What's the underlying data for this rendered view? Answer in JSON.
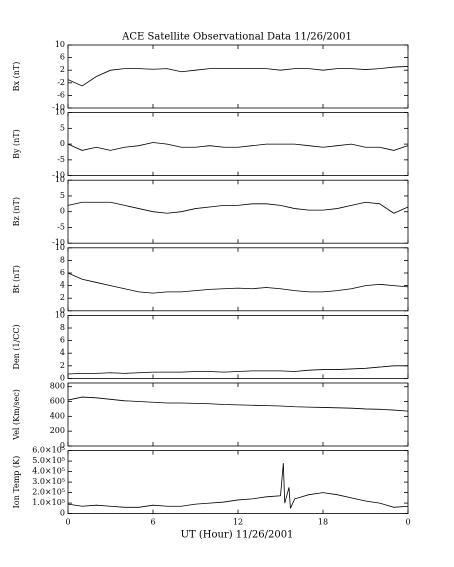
{
  "chart_data": [
    {
      "type": "line",
      "title": "ACE Satellite Observational Data   11/26/2001",
      "ylabel": "Bx (nT)",
      "color": "#000000",
      "ylim": [
        -10,
        10
      ],
      "yticks": [
        -10,
        -6,
        -2,
        2,
        6,
        10
      ],
      "x": [
        0,
        1,
        2,
        3,
        4,
        5,
        6,
        7,
        8,
        9,
        10,
        11,
        12,
        13,
        14,
        15,
        16,
        17,
        18,
        19,
        20,
        21,
        22,
        23,
        24
      ],
      "values": [
        -1,
        -3,
        0,
        2,
        2.5,
        2.5,
        2.3,
        2.5,
        1.5,
        2,
        2.5,
        2.5,
        2.5,
        2.5,
        2.5,
        2,
        2.5,
        2.5,
        2,
        2.5,
        2.5,
        2.2,
        2.5,
        3,
        3.2
      ]
    },
    {
      "type": "line",
      "ylabel": "By (nT)",
      "color": "#000000",
      "ylim": [
        -10,
        10
      ],
      "yticks": [
        -10,
        -5,
        0,
        5,
        10
      ],
      "x": [
        0,
        1,
        2,
        3,
        4,
        5,
        6,
        7,
        8,
        9,
        10,
        11,
        12,
        13,
        14,
        15,
        16,
        17,
        18,
        19,
        20,
        21,
        22,
        23,
        24
      ],
      "values": [
        0,
        -2,
        -1,
        -2,
        -1,
        -0.5,
        0.5,
        0,
        -1,
        -1,
        -0.5,
        -1,
        -1,
        -0.5,
        0,
        0,
        0,
        -0.5,
        -1,
        -0.5,
        0,
        -1,
        -1,
        -2,
        -0.5
      ]
    },
    {
      "type": "line",
      "ylabel": "Bz (nT)",
      "color": "#000000",
      "ylim": [
        -10,
        10
      ],
      "yticks": [
        -10,
        -5,
        0,
        5,
        10
      ],
      "x": [
        0,
        1,
        2,
        3,
        4,
        5,
        6,
        7,
        8,
        9,
        10,
        11,
        12,
        13,
        14,
        15,
        16,
        17,
        18,
        19,
        20,
        21,
        22,
        23,
        24
      ],
      "values": [
        2,
        3,
        3,
        3,
        2,
        1,
        0,
        -0.5,
        0,
        1,
        1.5,
        2,
        2,
        2.5,
        2.5,
        2,
        1,
        0.5,
        0.5,
        1,
        2,
        3,
        2.5,
        -0.5,
        1.5
      ]
    },
    {
      "type": "line",
      "ylabel": "Bt (nT)",
      "color": "#000000",
      "ylim": [
        0,
        10
      ],
      "yticks": [
        0,
        2,
        4,
        6,
        8,
        10
      ],
      "x": [
        0,
        1,
        2,
        3,
        4,
        5,
        6,
        7,
        8,
        9,
        10,
        11,
        12,
        13,
        14,
        15,
        16,
        17,
        18,
        19,
        20,
        21,
        22,
        23,
        24
      ],
      "values": [
        6,
        5,
        4.5,
        4,
        3.5,
        3,
        2.8,
        3,
        3,
        3.2,
        3.4,
        3.5,
        3.6,
        3.5,
        3.7,
        3.5,
        3.2,
        3,
        3,
        3.2,
        3.5,
        4,
        4.2,
        4,
        3.8
      ]
    },
    {
      "type": "line",
      "ylabel": "Den (1/CC)",
      "color": "#000000",
      "ylim": [
        0,
        10
      ],
      "yticks": [
        0,
        2,
        4,
        6,
        8,
        10
      ],
      "x": [
        0,
        1,
        2,
        3,
        4,
        5,
        6,
        7,
        8,
        9,
        10,
        11,
        12,
        13,
        14,
        15,
        16,
        17,
        18,
        19,
        20,
        21,
        22,
        23,
        24
      ],
      "values": [
        0.7,
        0.8,
        0.8,
        0.9,
        0.8,
        0.9,
        1,
        1,
        1,
        1.1,
        1.1,
        1,
        1.1,
        1.2,
        1.2,
        1.2,
        1.1,
        1.3,
        1.4,
        1.4,
        1.5,
        1.6,
        1.8,
        2,
        2
      ]
    },
    {
      "type": "line",
      "ylabel": "Vel (Km/sec)",
      "color": "#000000",
      "ylim": [
        0,
        850
      ],
      "yticks": [
        0,
        200,
        400,
        600,
        800
      ],
      "x": [
        0,
        1,
        2,
        3,
        4,
        5,
        6,
        7,
        8,
        9,
        10,
        11,
        12,
        13,
        14,
        15,
        16,
        17,
        18,
        19,
        20,
        21,
        22,
        23,
        24
      ],
      "values": [
        620,
        660,
        650,
        630,
        610,
        600,
        590,
        580,
        580,
        575,
        570,
        560,
        555,
        550,
        545,
        540,
        530,
        525,
        520,
        515,
        510,
        500,
        495,
        485,
        470
      ]
    },
    {
      "type": "line",
      "ylabel": "Ion Temp (K)",
      "color": "#000000",
      "xlabel": "UT (Hour)  11/26/2001",
      "ylim": [
        0,
        600000
      ],
      "yticks": [
        0,
        {
          "value": 100000,
          "label": "1.0×10⁵"
        },
        {
          "value": 200000,
          "label": "2.0×10⁵"
        },
        {
          "value": 300000,
          "label": "3.0×10⁵"
        },
        {
          "value": 400000,
          "label": "4.0×10⁵"
        },
        {
          "value": 500000,
          "label": "5.0×10⁵"
        },
        {
          "value": 600000,
          "label": "6.0×10⁵"
        }
      ],
      "xlim": [
        0,
        24
      ],
      "xticks": [
        0,
        6,
        12,
        18,
        {
          "value": 24,
          "label": "0"
        }
      ],
      "x": [
        0,
        1,
        2,
        3,
        4,
        5,
        6,
        7,
        8,
        9,
        10,
        11,
        12,
        13,
        14,
        15,
        15.2,
        15.3,
        15.6,
        15.7,
        16,
        17,
        18,
        19,
        20,
        21,
        22,
        23,
        24
      ],
      "values": [
        90000,
        70000,
        80000,
        70000,
        60000,
        60000,
        80000,
        70000,
        70000,
        90000,
        100000,
        110000,
        130000,
        140000,
        160000,
        170000,
        480000,
        100000,
        250000,
        50000,
        140000,
        180000,
        200000,
        180000,
        150000,
        120000,
        100000,
        60000,
        70000
      ]
    }
  ]
}
